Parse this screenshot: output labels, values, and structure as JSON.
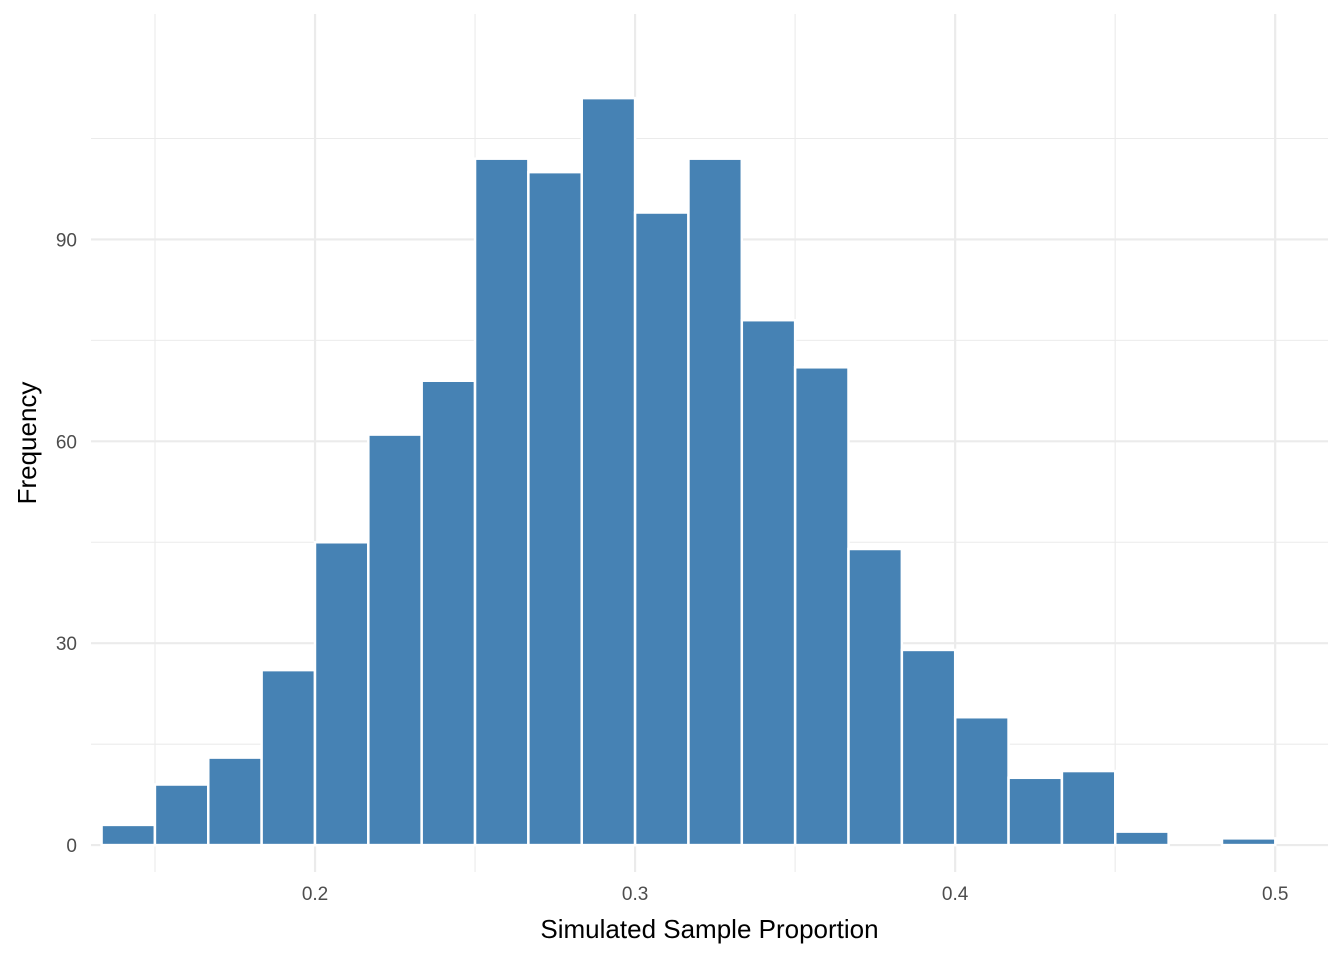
{
  "chart_data": {
    "type": "bar",
    "subtype": "histogram",
    "xlabel": "Simulated Sample Proportion",
    "ylabel": "Frequency",
    "xlim": [
      0.13,
      0.5165
    ],
    "ylim": [
      -4,
      123.5
    ],
    "x_ticks": [
      0.2,
      0.3,
      0.4,
      0.5
    ],
    "y_ticks": [
      0,
      30,
      60,
      90
    ],
    "x_tick_labels": [
      "0.2",
      "0.3",
      "0.4",
      "0.5"
    ],
    "y_tick_labels": [
      "0",
      "30",
      "60",
      "90"
    ],
    "grid": true,
    "bar_color": "#4682B4",
    "bin_width": 0.01667,
    "bin_start": 0.1333,
    "values": [
      3,
      9,
      13,
      26,
      45,
      61,
      69,
      102,
      100,
      111,
      94,
      102,
      78,
      71,
      44,
      29,
      19,
      10,
      11,
      2,
      0,
      1
    ]
  }
}
